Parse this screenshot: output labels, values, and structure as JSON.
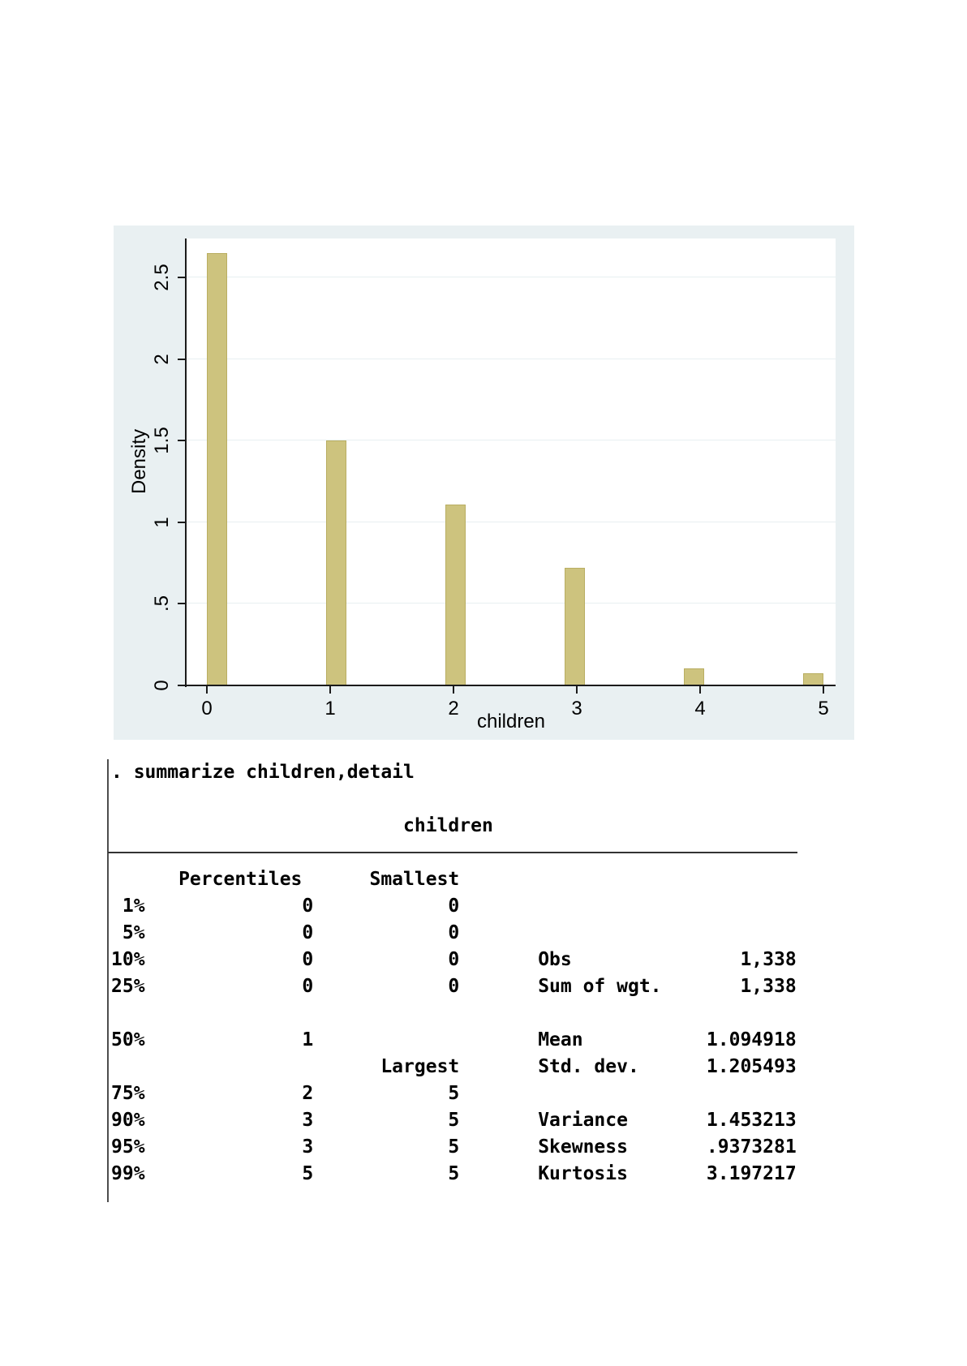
{
  "colors": {
    "page_bg": "#ffffff",
    "chart_bg": "#e9f0f2",
    "plot_bg": "#ffffff",
    "grid": "#e7eff1",
    "axis": "#1b1b1b",
    "tick": "#1b1b1b",
    "bar_fill": "#cdc37e",
    "bar_edge": "#b9ae62",
    "text": "#000000",
    "console_text": "#000000",
    "table_rule": "#333333",
    "left_border": "#4d4d4d"
  },
  "chart_data": {
    "type": "bar",
    "subtype": "histogram-density",
    "title": "",
    "xlabel": "children",
    "ylabel": "Density",
    "x_values": [
      0,
      1,
      2,
      3,
      4,
      5
    ],
    "densities": [
      2.65,
      1.5,
      1.11,
      0.72,
      0.105,
      0.075
    ],
    "bin_width": 0.1613,
    "bin_starts": [
      0,
      0.9677,
      1.9355,
      2.9032,
      3.871,
      4.8387
    ],
    "xticks": [
      0,
      1,
      2,
      3,
      4,
      5
    ],
    "xtick_labels": [
      "0",
      "1",
      "2",
      "3",
      "4",
      "5"
    ],
    "yticks": [
      0,
      0.5,
      1,
      1.5,
      2,
      2.5
    ],
    "ytick_labels": [
      "0",
      ".5",
      "1",
      "1.5",
      "2",
      "2.5"
    ],
    "xlim": [
      -0.16,
      5.09
    ],
    "ylim": [
      0,
      2.74
    ],
    "grid": "horizontal",
    "legend": "none"
  },
  "console": {
    "command": ". summarize children,detail",
    "variable": "children",
    "lines": [
      ". summarize children,detail",
      "",
      "                          children",
      "",
      "      Percentiles      Smallest",
      " 1%              0            0",
      " 5%              0            0",
      "10%              0            0       Obs               1,338",
      "25%              0            0       Sum of wgt.       1,338",
      "",
      "50%              1                    Mean           1.094918",
      "                        Largest       Std. dev.      1.205493",
      "75%              2            5",
      "90%              3            5       Variance       1.453213",
      "95%              3            5       Skewness       .9373281",
      "99%              5            5       Kurtosis       3.197217"
    ],
    "percentiles": {
      "1%": "0",
      "5%": "0",
      "10%": "0",
      "25%": "0",
      "50%": "1",
      "75%": "2",
      "90%": "3",
      "95%": "3",
      "99%": "5"
    },
    "smallest": [
      "0",
      "0",
      "0",
      "0"
    ],
    "largest": [
      "5",
      "5",
      "5",
      "5"
    ],
    "stats": {
      "obs": "1,338",
      "sum_of_wgt": "1,338",
      "mean": "1.094918",
      "std_dev": "1.205493",
      "variance": "1.453213",
      "skewness": ".9373281",
      "kurtosis": "3.197217"
    }
  }
}
